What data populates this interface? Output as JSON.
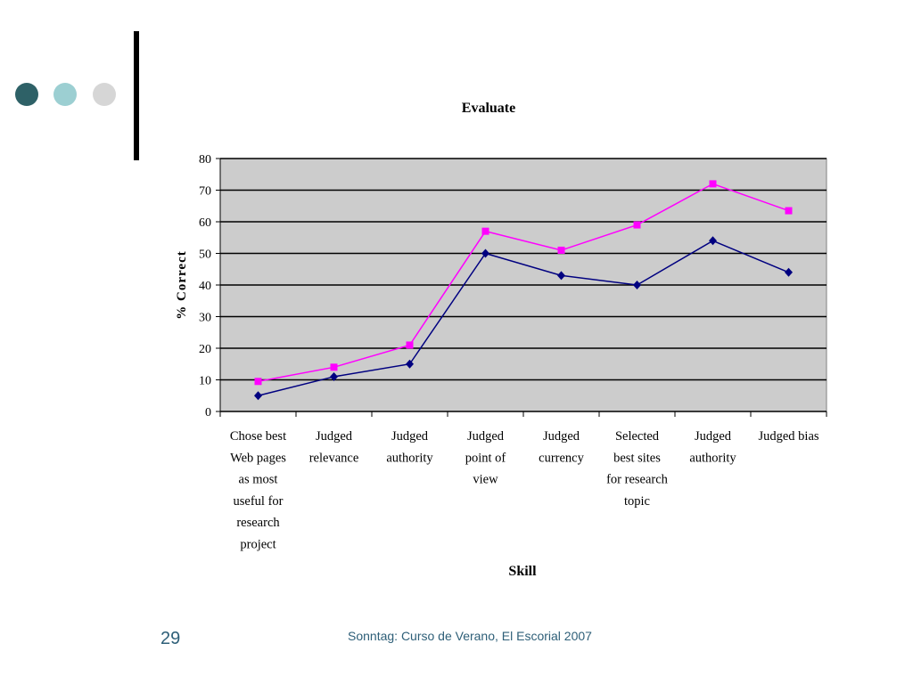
{
  "decor": {
    "dot_colors": [
      "#2e6167",
      "#9ccfd2",
      "#d6d6d6"
    ],
    "bar_color": "#000000"
  },
  "footer": {
    "page_number": "29",
    "caption": "Sonntag: Curso de Verano, El Escorial 2007"
  },
  "chart_data": {
    "type": "line",
    "title": "Evaluate",
    "xlabel": "Skill",
    "ylabel": "% Correct",
    "ylim": [
      0,
      80
    ],
    "yticks": [
      0,
      10,
      20,
      30,
      40,
      50,
      60,
      70,
      80
    ],
    "grid": true,
    "plot_background": "#cccccc",
    "categories": [
      [
        "Chose best",
        "Web pages",
        "as most",
        "useful for",
        "research",
        "project"
      ],
      [
        "Judged",
        "relevance"
      ],
      [
        "Judged",
        "authority"
      ],
      [
        "Judged",
        "point of",
        "view"
      ],
      [
        "Judged",
        "currency"
      ],
      [
        "Selected",
        "best sites",
        "for research",
        "topic"
      ],
      [
        "Judged",
        "authority"
      ],
      [
        "Judged  bias"
      ]
    ],
    "series": [
      {
        "marker": "diamond",
        "color": "#000080",
        "values": [
          5,
          11,
          15,
          50,
          43,
          40,
          54,
          44
        ]
      },
      {
        "marker": "square",
        "color": "#ff00ff",
        "values": [
          9.5,
          14,
          21,
          57,
          51,
          59,
          72,
          63.5
        ]
      }
    ]
  }
}
